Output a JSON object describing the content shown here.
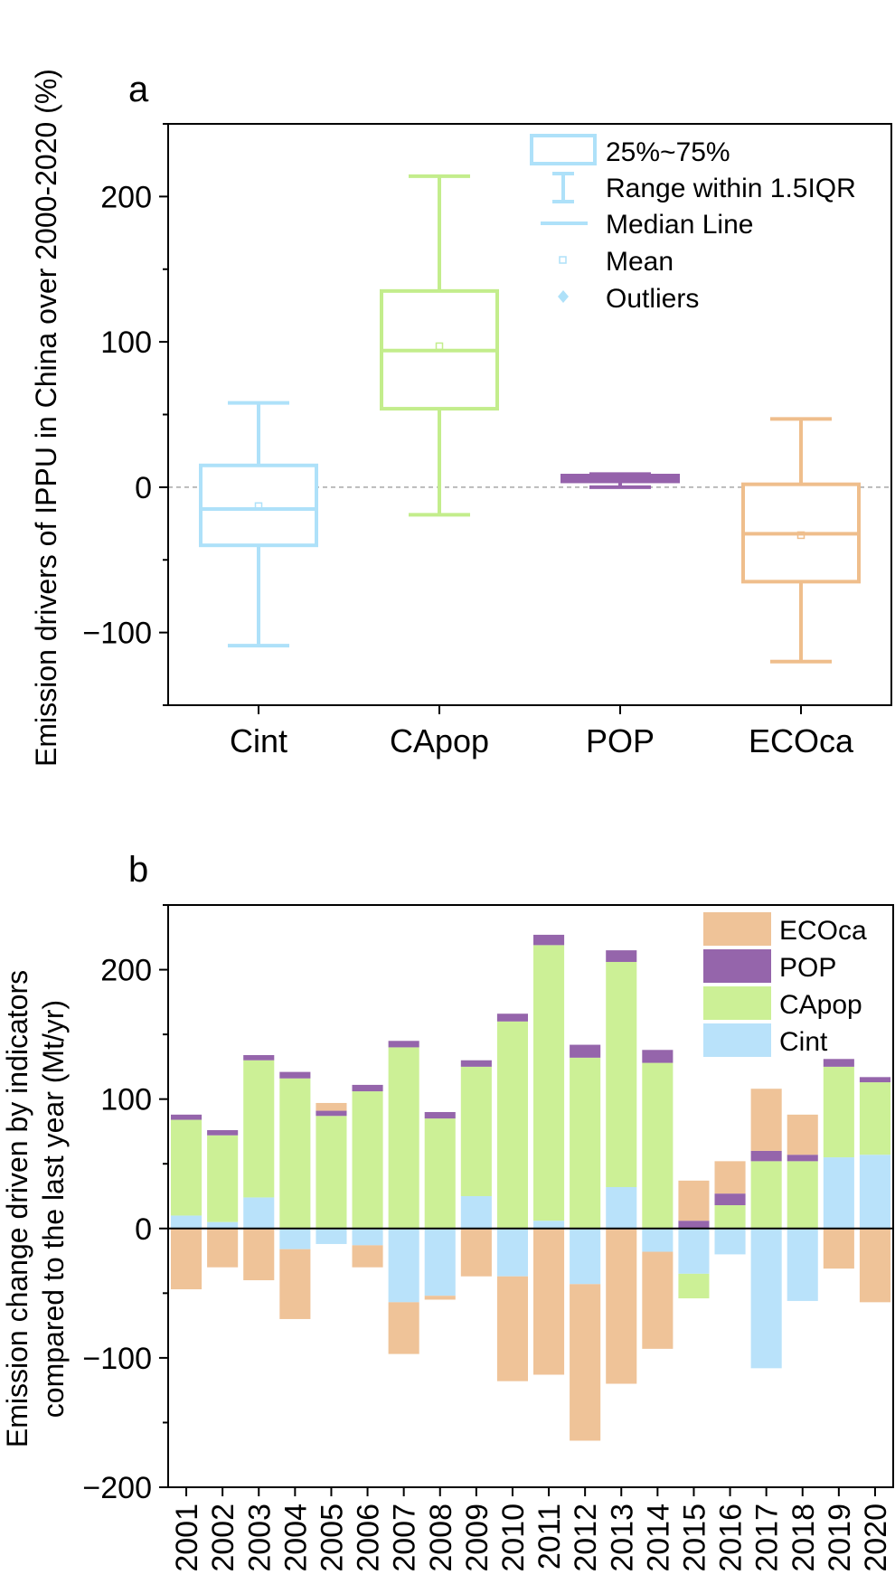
{
  "chart_data": [
    {
      "type": "box",
      "panel": "a",
      "ylabel": "Emission drivers of IPPU in China over 2000-2020 (%)",
      "ylim": [
        -150,
        250
      ],
      "yticks": [
        -100,
        0,
        100,
        200
      ],
      "ytick_labels": [
        "−100",
        "0",
        "100",
        "200"
      ],
      "categories": [
        "Cint",
        "CApop",
        "POP",
        "ECOca"
      ],
      "colors": [
        "#aee1f9",
        "#c3ed8c",
        "#9562ab",
        "#efbe8c"
      ],
      "boxes": [
        {
          "name": "Cint",
          "whisker_low": -109,
          "q1": -40,
          "median": -15,
          "mean": -13,
          "q3": 15,
          "whisker_high": 58
        },
        {
          "name": "CApop",
          "whisker_low": -19,
          "q1": 54,
          "median": 94,
          "mean": 97,
          "q3": 135,
          "whisker_high": 214
        },
        {
          "name": "POP",
          "whisker_low": 0,
          "q1": 4,
          "median": 6,
          "mean": 6,
          "q3": 8,
          "whisker_high": 9
        },
        {
          "name": "ECOca",
          "whisker_low": -120,
          "q1": -65,
          "median": -32,
          "mean": -33,
          "q3": 2,
          "whisker_high": 47
        }
      ],
      "reference_line": 0,
      "legend": {
        "placement": "top-right",
        "entries": [
          "25%~75%",
          "Range within 1.5IQR",
          "Median Line",
          "Mean",
          "Outliers"
        ]
      }
    },
    {
      "type": "bar",
      "stacked": true,
      "panel": "b",
      "ylabel_lines": [
        "Emission change driven by indicators",
        "compared to the last year (Mt/yr)"
      ],
      "ylim": [
        -200,
        250
      ],
      "yticks": [
        -200,
        -100,
        0,
        100,
        200
      ],
      "ytick_labels": [
        "−200",
        "−100",
        "0",
        "100",
        "200"
      ],
      "categories": [
        "2001",
        "2002",
        "2003",
        "2004",
        "2005",
        "2006",
        "2007",
        "2008",
        "2009",
        "2010",
        "2011",
        "2012",
        "2013",
        "2014",
        "2015",
        "2016",
        "2017",
        "2018",
        "2019",
        "2020"
      ],
      "series": [
        {
          "name": "Cint",
          "color": "#b9e2fa",
          "values": [
            10,
            5,
            24,
            -16,
            -12,
            -13,
            -57,
            -52,
            25,
            -37,
            6,
            -43,
            32,
            -18,
            -35,
            -20,
            -108,
            -56,
            55,
            57
          ]
        },
        {
          "name": "CApop",
          "color": "#ccf096",
          "values": [
            74,
            67,
            106,
            116,
            87,
            106,
            140,
            85,
            100,
            160,
            213,
            132,
            174,
            128,
            -19,
            18,
            52,
            52,
            70,
            56
          ]
        },
        {
          "name": "POP",
          "color": "#9565ab",
          "values": [
            4,
            4,
            4,
            5,
            4,
            5,
            5,
            5,
            5,
            6,
            8,
            10,
            9,
            10,
            6,
            9,
            8,
            5,
            6,
            4
          ]
        },
        {
          "name": "ECOca",
          "color": "#efc398",
          "values": [
            -47,
            -30,
            -40,
            -54,
            6,
            -17,
            -40,
            -3,
            -37,
            -81,
            -113,
            -121,
            -120,
            -75,
            31,
            25,
            48,
            31,
            -31,
            -57
          ]
        }
      ],
      "legend": {
        "placement": "top-right",
        "order": [
          "ECOca",
          "POP",
          "CApop",
          "Cint"
        ]
      }
    }
  ]
}
